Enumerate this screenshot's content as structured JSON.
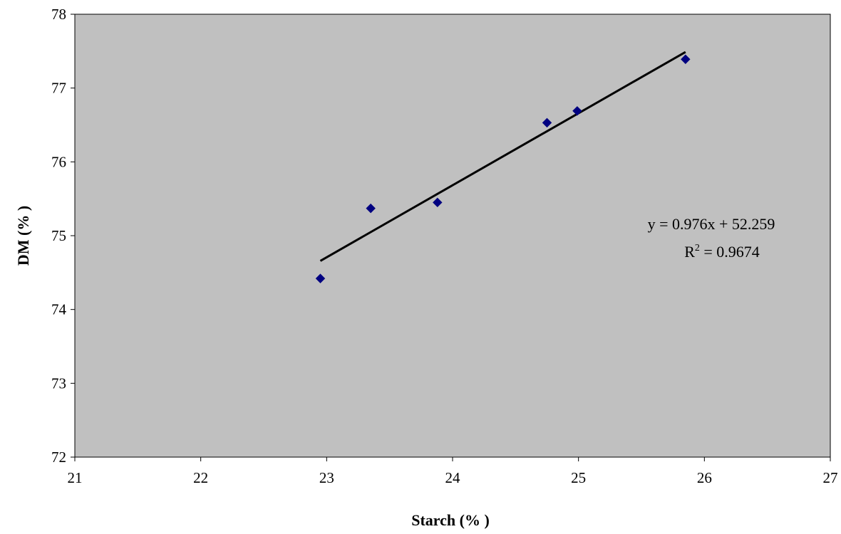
{
  "chart_data": {
    "type": "scatter",
    "xlabel": "Starch (% )",
    "ylabel": "DM (% )",
    "xlim": [
      21,
      27
    ],
    "ylim": [
      72,
      78
    ],
    "x_ticks": [
      21,
      22,
      23,
      24,
      25,
      26,
      27
    ],
    "y_ticks": [
      72,
      73,
      74,
      75,
      76,
      77,
      78
    ],
    "grid": false,
    "plot_background": "#c0c0c0",
    "series": [
      {
        "color": "#000080",
        "marker": "diamond",
        "points": [
          {
            "x": 22.95,
            "y": 74.42
          },
          {
            "x": 23.35,
            "y": 75.37
          },
          {
            "x": 23.88,
            "y": 75.45
          },
          {
            "x": 24.75,
            "y": 76.53
          },
          {
            "x": 24.99,
            "y": 76.69
          },
          {
            "x": 25.85,
            "y": 77.39
          }
        ]
      }
    ],
    "trendline": {
      "type": "linear",
      "slope": 0.976,
      "intercept": 52.259,
      "x_range": [
        22.95,
        25.85
      ],
      "color": "#000000"
    },
    "annotations": {
      "equation": "y = 0.976x + 52.259",
      "r2_prefix": "R",
      "r2_superscript": "2",
      "r2_suffix": " = 0.9674"
    }
  }
}
